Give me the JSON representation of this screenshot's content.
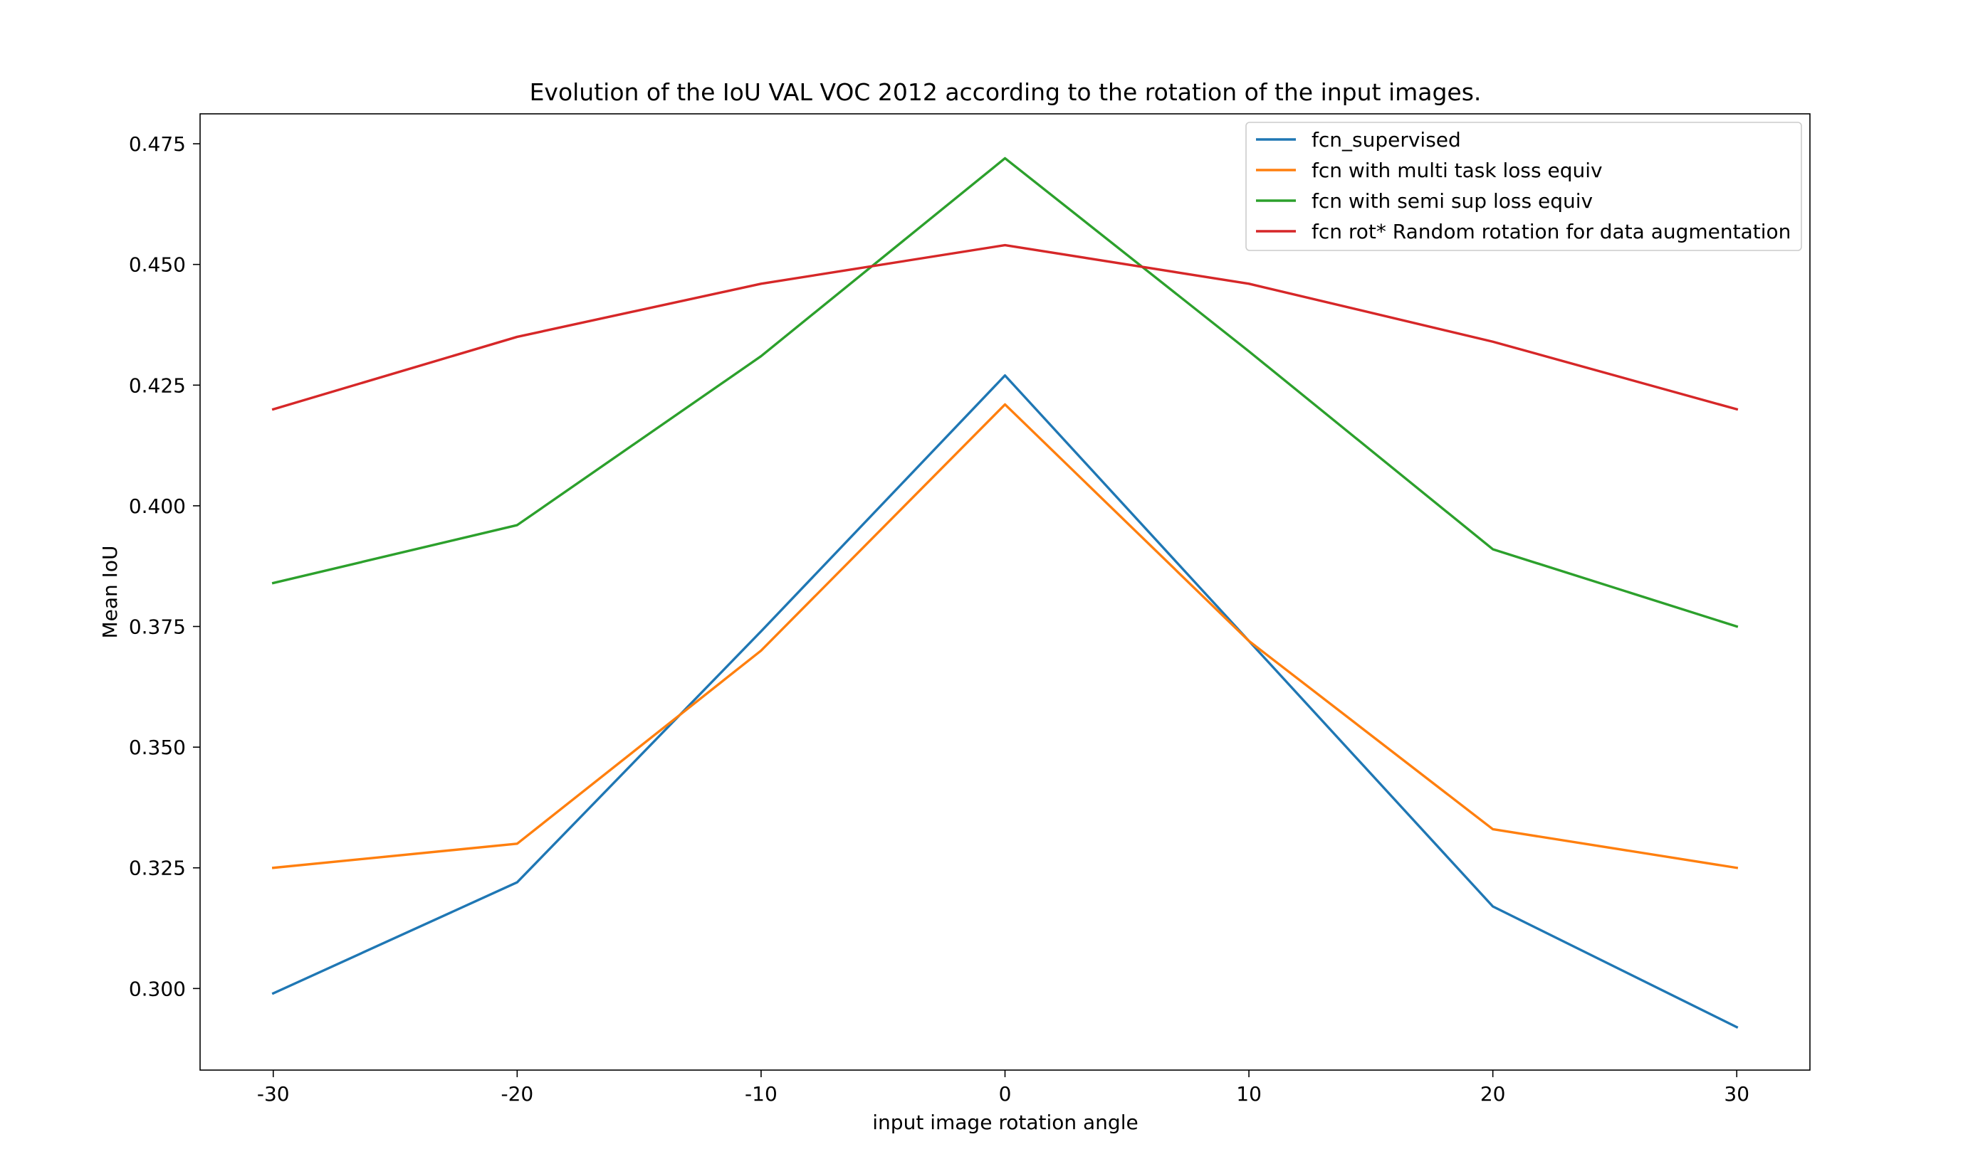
{
  "chart_data": {
    "type": "line",
    "title": "Evolution of the IoU VAL VOC 2012 according to the rotation of the input images.",
    "xlabel": "input image rotation angle",
    "ylabel": "Mean IoU",
    "x": [
      -30,
      -20,
      -10,
      0,
      10,
      20,
      30
    ],
    "x_tick_labels": [
      "-30",
      "-20",
      "-10",
      "0",
      "10",
      "20",
      "30"
    ],
    "xlim": [
      -33,
      33
    ],
    "y_tick_values": [
      0.3,
      0.325,
      0.35,
      0.375,
      0.4,
      0.425,
      0.45,
      0.475
    ],
    "y_tick_labels": [
      "0.300",
      "0.325",
      "0.350",
      "0.375",
      "0.400",
      "0.425",
      "0.450",
      "0.475"
    ],
    "ylim": [
      0.2831,
      0.4812
    ],
    "grid": false,
    "legend_position": "top-right",
    "series": [
      {
        "name": "fcn_supervised",
        "color": "#1f77b4",
        "values": [
          0.299,
          0.322,
          0.374,
          0.427,
          0.372,
          0.317,
          0.292
        ]
      },
      {
        "name": "fcn with multi task loss equiv",
        "color": "#ff7f0e",
        "values": [
          0.325,
          0.33,
          0.37,
          0.421,
          0.372,
          0.333,
          0.325
        ]
      },
      {
        "name": "fcn with semi sup loss equiv",
        "color": "#2ca02c",
        "values": [
          0.384,
          0.396,
          0.431,
          0.472,
          0.432,
          0.391,
          0.375
        ]
      },
      {
        "name": "fcn rot* Random rotation for data augmentation",
        "color": "#d62728",
        "values": [
          0.42,
          0.435,
          0.446,
          0.454,
          0.446,
          0.434,
          0.42
        ]
      }
    ]
  }
}
